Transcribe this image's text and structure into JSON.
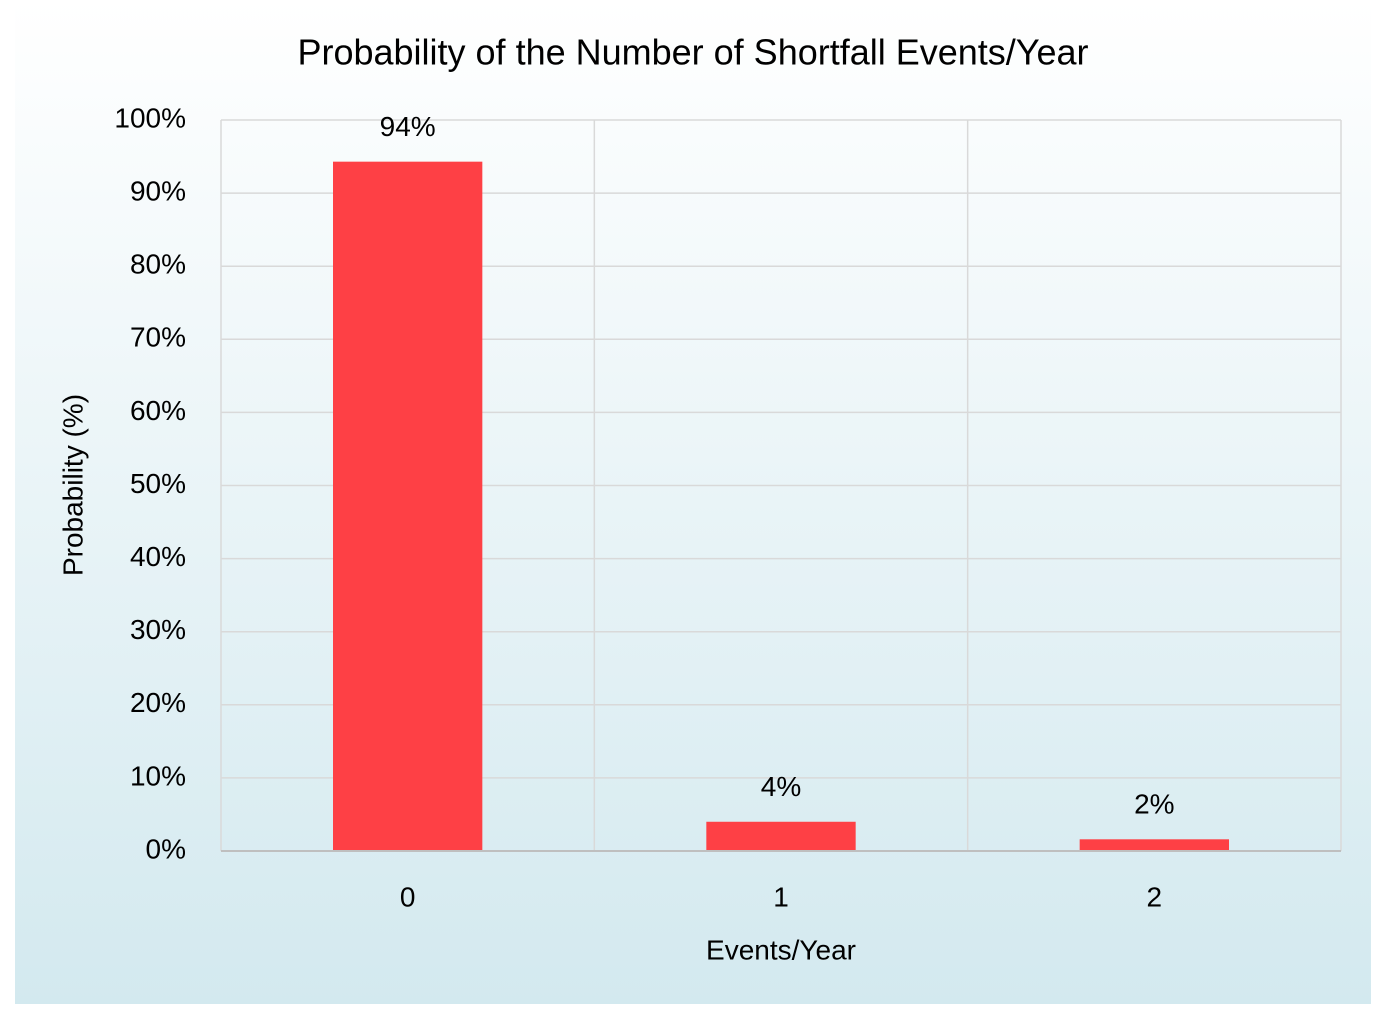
{
  "chart_data": {
    "type": "bar",
    "title": "Probability of the Number of Shortfall Events/Year",
    "x_label": "Events/Year",
    "y_label": "Probability (%)",
    "categories": [
      "0",
      "1",
      "2"
    ],
    "values": [
      94.3,
      4,
      1.6
    ],
    "value_labels": [
      "94%",
      "4%",
      "2%"
    ],
    "color": "#fe4045",
    "ylim": [
      0,
      100
    ],
    "yticks": [
      {
        "value": 0,
        "label": "0%"
      },
      {
        "value": 10,
        "label": "10%"
      },
      {
        "value": 20,
        "label": "20%"
      },
      {
        "value": 30,
        "label": "30%"
      },
      {
        "value": 40,
        "label": "40%"
      },
      {
        "value": 50,
        "label": "50%"
      },
      {
        "value": 60,
        "label": "60%"
      },
      {
        "value": 70,
        "label": "70%"
      },
      {
        "value": 80,
        "label": "80%"
      },
      {
        "value": 90,
        "label": "90%"
      },
      {
        "value": 100,
        "label": "100%"
      }
    ],
    "grid": true
  }
}
